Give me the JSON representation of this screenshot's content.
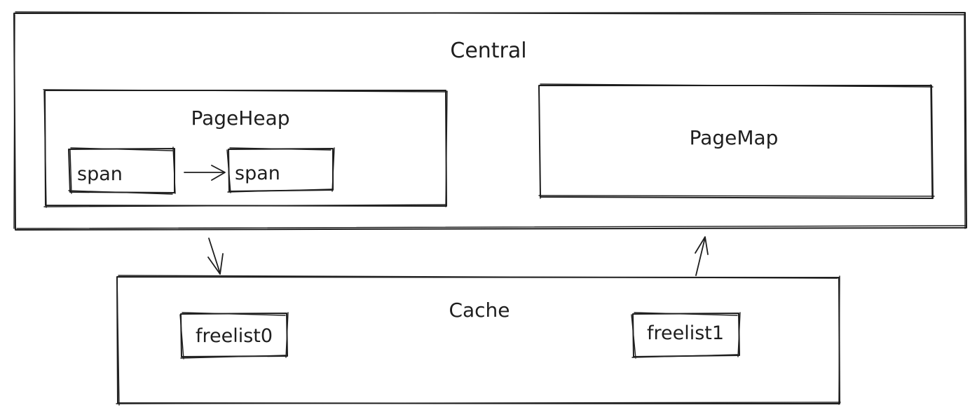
{
  "central": {
    "label": "Central"
  },
  "page_heap": {
    "label": "PageHeap",
    "spans": [
      "span",
      "span"
    ]
  },
  "page_map": {
    "label": "PageMap"
  },
  "cache": {
    "label": "Cache",
    "freelists": [
      "freelist0",
      "freelist1"
    ]
  },
  "colors": {
    "stroke": "#1e1e1e",
    "background": "#ffffff"
  }
}
